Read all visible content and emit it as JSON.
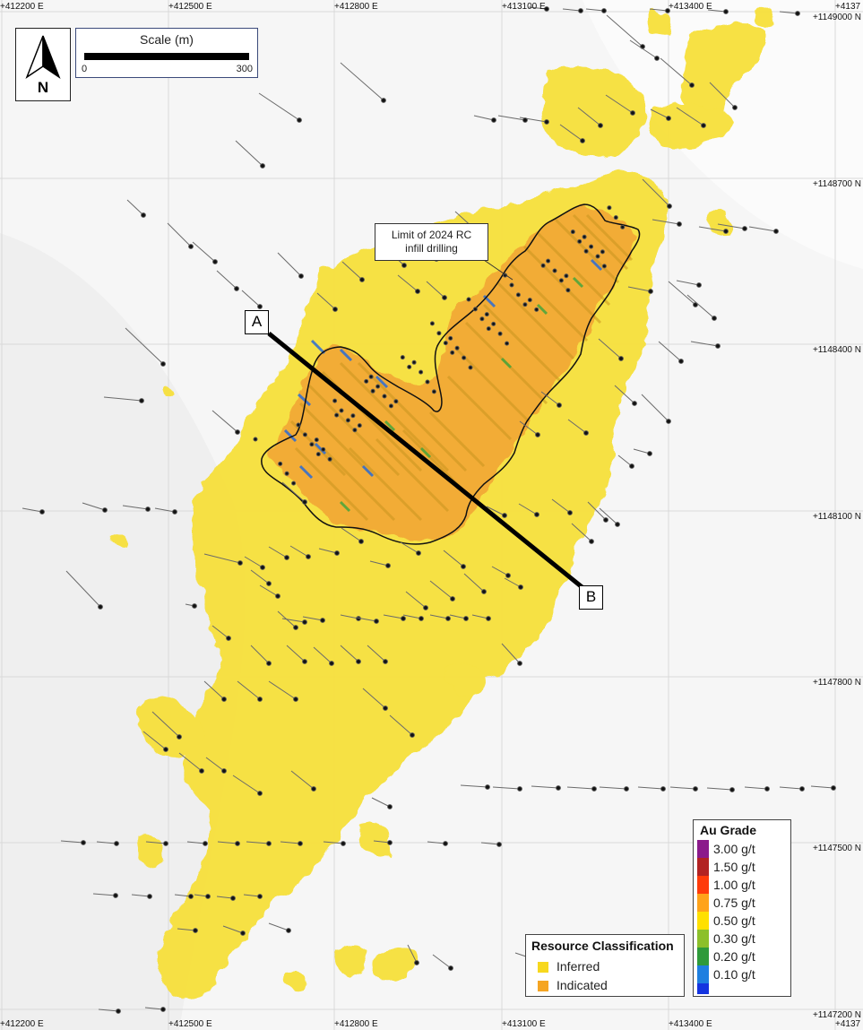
{
  "map": {
    "easting_labels": [
      "+412200 E",
      "+412500 E",
      "+412800 E",
      "+413100 E",
      "+413400 E",
      "+4137"
    ],
    "northing_labels": [
      "+1149000 N",
      "+1148700 N",
      "+1148400 N",
      "+1148100 N",
      "+1147800 N",
      "+1147500 N",
      "+1147200 N"
    ],
    "bottom_easting_labels": [
      "+412200 E",
      "+412500 E",
      "+412800 E",
      "+413100 E",
      "+413400 E",
      "+4137"
    ]
  },
  "north_arrow": {
    "letter": "N"
  },
  "scale": {
    "title": "Scale (m)",
    "min": "0",
    "max": "300"
  },
  "callout": {
    "line1": "Limit of 2024 RC",
    "line2": "infill drilling"
  },
  "section": {
    "start": "A",
    "end": "B"
  },
  "resource_legend": {
    "title": "Resource Classification",
    "items": [
      {
        "label": "Inferred",
        "color": "#f7d81e"
      },
      {
        "label": "Indicated",
        "color": "#f5a523"
      }
    ]
  },
  "grade_legend": {
    "title": "Au Grade",
    "items": [
      {
        "label": "3.00 g/t",
        "color": "#8b1a8b"
      },
      {
        "label": "1.50 g/t",
        "color": "#b22222"
      },
      {
        "label": "1.00 g/t",
        "color": "#ff3b0a"
      },
      {
        "label": "0.75 g/t",
        "color": "#ffa31a"
      },
      {
        "label": "0.50 g/t",
        "color": "#ffe000"
      },
      {
        "label": "0.30 g/t",
        "color": "#8cc02a"
      },
      {
        "label": "0.20 g/t",
        "color": "#2e9a3a"
      },
      {
        "label": "0.10 g/t",
        "color": "#1e7fe0"
      },
      {
        "label": "",
        "color": "#1434e0"
      }
    ]
  },
  "colors": {
    "inferred": "#f7e03a",
    "indicated": "#f2a734",
    "background": "#f6f6f6",
    "grid": "#d9d9d9"
  }
}
